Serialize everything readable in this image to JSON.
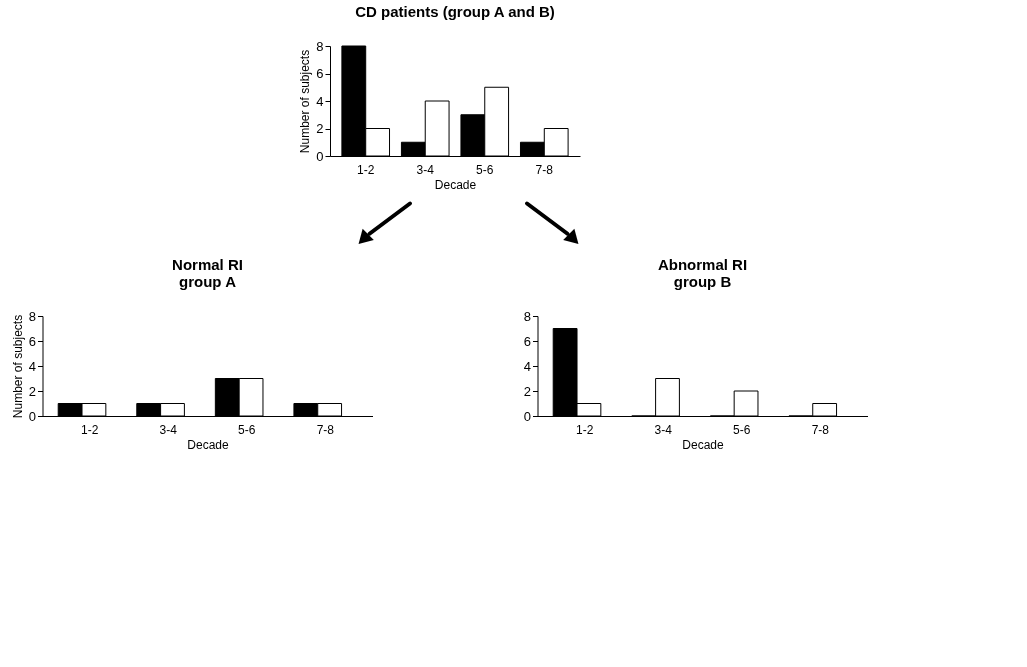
{
  "chart_data": [
    {
      "type": "bar",
      "title": "CD patients (group A and B)",
      "xlabel": "Decade",
      "ylabel": "Number of subjects",
      "categories": [
        "1-2",
        "3-4",
        "5-6",
        "7-8"
      ],
      "series": [
        {
          "color": "#000000",
          "values": [
            8,
            1,
            3,
            1
          ]
        },
        {
          "color": "#ffffff",
          "values": [
            2,
            4,
            5,
            2
          ]
        }
      ],
      "ylim": [
        0,
        8
      ],
      "yticks": [
        0,
        2,
        4,
        6,
        8
      ],
      "grid": false
    },
    {
      "type": "bar",
      "title": "Normal RI\ngroup A",
      "xlabel": "Decade",
      "ylabel": "Number of subjects",
      "categories": [
        "1-2",
        "3-4",
        "5-6",
        "7-8"
      ],
      "series": [
        {
          "color": "#000000",
          "values": [
            1,
            1,
            3,
            1
          ]
        },
        {
          "color": "#ffffff",
          "values": [
            1,
            1,
            3,
            1
          ]
        }
      ],
      "ylim": [
        0,
        8
      ],
      "yticks": [
        0,
        2,
        4,
        6,
        8
      ],
      "grid": false
    },
    {
      "type": "bar",
      "title": "Abnormal RI\ngroup B",
      "xlabel": "Decade",
      "categories": [
        "1-2",
        "3-4",
        "5-6",
        "7-8"
      ],
      "series": [
        {
          "color": "#000000",
          "values": [
            7,
            0,
            0,
            0
          ]
        },
        {
          "color": "#ffffff",
          "values": [
            1,
            3,
            2,
            1
          ]
        }
      ],
      "ylim": [
        0,
        8
      ],
      "yticks": [
        0,
        2,
        4,
        6,
        8
      ],
      "grid": false
    }
  ]
}
